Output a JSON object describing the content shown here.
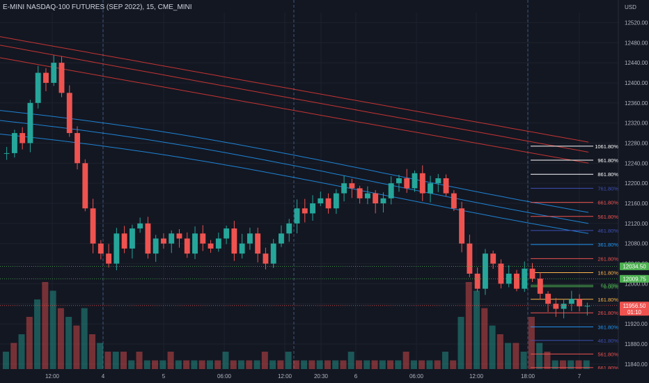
{
  "header": {
    "symbol_title": "E-MINI NASDAQ-100 FUTURES (SEP 2022), 15, CME_MINI"
  },
  "colors": {
    "background": "#131722",
    "grid": "#1e222d",
    "bull": "#26a69a",
    "bear": "#ef5350",
    "ma_blue": "#2196f3",
    "ma_red": "#e53935",
    "session_marker": "#3d5a80",
    "axis_text": "#b2b5be"
  },
  "chart_data": {
    "type": "candlestick",
    "currency_label": "USD",
    "y_axis": {
      "ticks": [
        12520,
        12480,
        12440,
        12400,
        12360,
        12320,
        12280,
        12240,
        12200,
        12160,
        12120,
        12080,
        12040,
        12000,
        11960,
        11920,
        11880,
        11840
      ],
      "tick_labels": [
        "12520.00",
        "12480.00",
        "12440.00",
        "12400.00",
        "12360.00",
        "12320.00",
        "12280.00",
        "12240.00",
        "12200.00",
        "12160.00",
        "12120.00",
        "12080.00",
        "12040.00",
        "12000.00",
        "11960.00",
        "11920.00",
        "11880.00",
        "11840.00"
      ],
      "range": [
        11830,
        12540
      ]
    },
    "x_axis": {
      "tick_labels": [
        "12:00",
        "4",
        "5",
        "06:00",
        "12:00",
        "20:30",
        "6",
        "06:00",
        "12:00",
        "18:00",
        "7"
      ]
    },
    "price_badges": [
      {
        "label": "12034.50",
        "value": 12034.5,
        "color": "#4caf50"
      },
      {
        "label": "12009.75",
        "value": 12009.75,
        "color": "#4caf50"
      },
      {
        "label": "11956.50",
        "sublabel": "01:10",
        "value": 11956.5,
        "color": "#ef5350"
      }
    ],
    "fib_upper_levels": [
      {
        "label": "1061.80%",
        "value": 12274,
        "color": "#ffffff"
      },
      {
        "label": "961.80%",
        "value": 12246,
        "color": "#ffffff"
      },
      {
        "label": "861.80%",
        "value": 12218,
        "color": "#ffffff"
      },
      {
        "label": "761.80%",
        "value": 12190,
        "color": "#3f51b5"
      },
      {
        "label": "661.80%",
        "value": 12162,
        "color": "#ef5350"
      },
      {
        "label": "561.80%",
        "value": 12134,
        "color": "#ef5350"
      },
      {
        "label": "461.80%",
        "value": 12106,
        "color": "#3f51b5"
      },
      {
        "label": "361.80%",
        "value": 12078,
        "color": "#2196f3"
      },
      {
        "label": "261.80%",
        "value": 12050,
        "color": "#ef5350"
      },
      {
        "label": "161.80%",
        "value": 12022,
        "color": "#ffb74d"
      },
      {
        "label": "61.80%",
        "value": 11997,
        "color": "#4caf50"
      },
      {
        "label": "0.00%",
        "value": 11994,
        "color": "#4caf50"
      }
    ],
    "fib_lower_levels": [
      {
        "label": "161.80%",
        "value": 11969,
        "color": "#ffb74d"
      },
      {
        "label": "261.80%",
        "value": 11942,
        "color": "#ef5350"
      },
      {
        "label": "361.80%",
        "value": 11914,
        "color": "#2196f3"
      },
      {
        "label": "461.80%",
        "value": 11887,
        "color": "#3f51b5"
      },
      {
        "label": "561.80%",
        "value": 11860,
        "color": "#ef5350"
      },
      {
        "label": "661.80%",
        "value": 11833,
        "color": "#ef5350"
      }
    ],
    "series": [
      {
        "name": "",
        "kind": "red-band",
        "color": "#e53935",
        "start": 12492,
        "end": 12282
      },
      {
        "name": "",
        "kind": "red-band",
        "color": "#e53935",
        "start": 12475,
        "end": 12262
      },
      {
        "name": "",
        "kind": "red-band",
        "color": "#e53935",
        "start": 12450,
        "end": 12240
      },
      {
        "name": "",
        "kind": "blue-band",
        "color": "#2196f3",
        "start": 12345,
        "end": 12152
      },
      {
        "name": "",
        "kind": "blue-band",
        "color": "#2196f3",
        "start": 12325,
        "end": 12130
      },
      {
        "name": "",
        "kind": "blue-band",
        "color": "#2196f3",
        "start": 12298,
        "end": 12110
      }
    ],
    "price_path": [
      12260,
      12300,
      12280,
      12360,
      12420,
      12400,
      12440,
      12380,
      12300,
      12240,
      12150,
      12080,
      12060,
      12040,
      12100,
      12070,
      12110,
      12120,
      12060,
      12090,
      12080,
      12100,
      12090,
      12060,
      12100,
      12080,
      12070,
      12090,
      12110,
      12060,
      12080,
      12100,
      12060,
      12040,
      12080,
      12100,
      12120,
      12150,
      12140,
      12160,
      12170,
      12150,
      12180,
      12200,
      12190,
      12170,
      12180,
      12160,
      12170,
      12200,
      12210,
      12190,
      12220,
      12180,
      12200,
      12210,
      12180,
      12150,
      12080,
      12020,
      11990,
      12060,
      12040,
      12000,
      12020,
      11990,
      12030,
      12010,
      11980,
      11960,
      11950,
      11960,
      11970,
      11955,
      11956
    ],
    "volume_profile": [
      2,
      3,
      4,
      6,
      8,
      10,
      9,
      7,
      6,
      5,
      7,
      4,
      3,
      2,
      2,
      2,
      1,
      2,
      1,
      1,
      1,
      2,
      1,
      1,
      1,
      1,
      1,
      1,
      2,
      1,
      1,
      1,
      1,
      2,
      1,
      1,
      2,
      1,
      1,
      1,
      1,
      1,
      1,
      1,
      2,
      1,
      1,
      1,
      1,
      1,
      1,
      2,
      1,
      1,
      1,
      1,
      2,
      1,
      6,
      10,
      9,
      7,
      5,
      4,
      3,
      3,
      2,
      6,
      3,
      2,
      1,
      1,
      1,
      1,
      1
    ]
  }
}
